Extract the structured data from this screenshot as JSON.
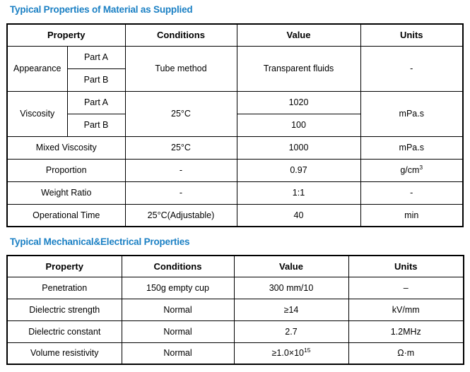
{
  "page": {
    "background": "#ffffff",
    "accent_color": "#1b80c4",
    "border_color": "#000000"
  },
  "section1": {
    "title": "Typical Properties of Material as Supplied",
    "table": {
      "header": [
        {
          "text": "Property",
          "colspan": 2
        },
        {
          "text": "Conditions"
        },
        {
          "text": "Value"
        },
        {
          "text": "Units"
        }
      ],
      "rows": [
        [
          {
            "text": "Appearance",
            "rowspan": 2
          },
          {
            "text": "Part A"
          },
          {
            "text": "Tube method",
            "rowspan": 2
          },
          {
            "text": "Transparent fluids",
            "rowspan": 2
          },
          {
            "text": "-",
            "rowspan": 2
          }
        ],
        [
          {
            "text": "Part B"
          }
        ],
        [
          {
            "text": "Viscosity",
            "rowspan": 2
          },
          {
            "text": "Part A"
          },
          {
            "text": "25°C",
            "rowspan": 2
          },
          {
            "text": "1020"
          },
          {
            "text": "mPa.s",
            "rowspan": 2
          }
        ],
        [
          {
            "text": "Part B"
          },
          {
            "text": "100"
          }
        ],
        [
          {
            "text": "Mixed Viscosity",
            "colspan": 2
          },
          {
            "text": "25°C"
          },
          {
            "text": "1000"
          },
          {
            "text": "mPa.s"
          }
        ],
        [
          {
            "text": "Proportion",
            "colspan": 2
          },
          {
            "text": "-"
          },
          {
            "text": "0.97"
          },
          {
            "text": "g/cm",
            "sup": "3"
          }
        ],
        [
          {
            "text": "Weight Ratio",
            "colspan": 2
          },
          {
            "text": "-"
          },
          {
            "text": "1:1"
          },
          {
            "text": "-"
          }
        ],
        [
          {
            "text": "Operational Time",
            "colspan": 2
          },
          {
            "text": "25°C(Adjustable)"
          },
          {
            "text": "40"
          },
          {
            "text": "min"
          }
        ]
      ]
    }
  },
  "section2": {
    "title": "Typical Mechanical&Electrical Properties",
    "table": {
      "header": [
        {
          "text": "Property"
        },
        {
          "text": "Conditions"
        },
        {
          "text": "Value"
        },
        {
          "text": "Units"
        }
      ],
      "rows": [
        [
          {
            "text": "Penetration"
          },
          {
            "text": "150g empty cup"
          },
          {
            "text": "300 mm/10"
          },
          {
            "text": "–"
          }
        ],
        [
          {
            "text": "Dielectric strength"
          },
          {
            "text": "Normal"
          },
          {
            "text": "≥14"
          },
          {
            "text": "kV/mm"
          }
        ],
        [
          {
            "text": "Dielectric constant"
          },
          {
            "text": "Normal"
          },
          {
            "text": "2.7"
          },
          {
            "text": "1.2MHz"
          }
        ],
        [
          {
            "text": "Volume resistivity"
          },
          {
            "text": "Normal"
          },
          {
            "text": "≥1.0×10",
            "sup": "15"
          },
          {
            "text": "Ω·m"
          }
        ]
      ]
    }
  }
}
